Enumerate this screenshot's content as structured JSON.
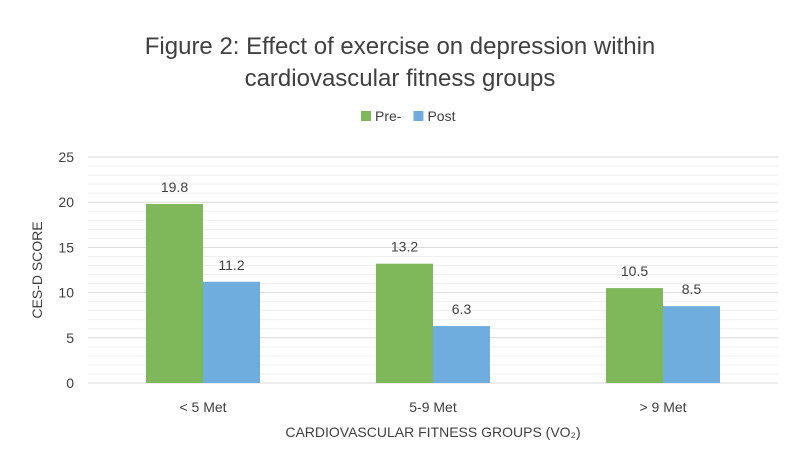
{
  "chart_data": {
    "type": "bar",
    "title": [
      "Figure 2: Effect of exercise on depression within",
      "cardiovascular fitness groups"
    ],
    "xlabel": "CARDIOVASCULAR FITNESS GROUPS (VO₂)",
    "ylabel": "CES-D SCORE",
    "categories": [
      "< 5 Met",
      "5-9 Met",
      "> 9 Met"
    ],
    "series": [
      {
        "name": "Pre-",
        "color": "#7EB85A",
        "values": [
          19.8,
          13.2,
          10.5
        ],
        "labels": [
          "19.8",
          "13.2",
          "10.5"
        ]
      },
      {
        "name": "Post",
        "color": "#6FADDF",
        "values": [
          11.2,
          6.3,
          8.5
        ],
        "labels": [
          "11.2",
          "6.3",
          "8.5"
        ]
      }
    ],
    "ylim": [
      0,
      25
    ],
    "yticks": [
      0,
      5,
      10,
      15,
      20,
      25
    ],
    "ytick_labels": [
      "0",
      "5",
      "10",
      "15",
      "20",
      "25"
    ],
    "minor_grid_step": 1,
    "grid": true,
    "legend_position": "top"
  }
}
